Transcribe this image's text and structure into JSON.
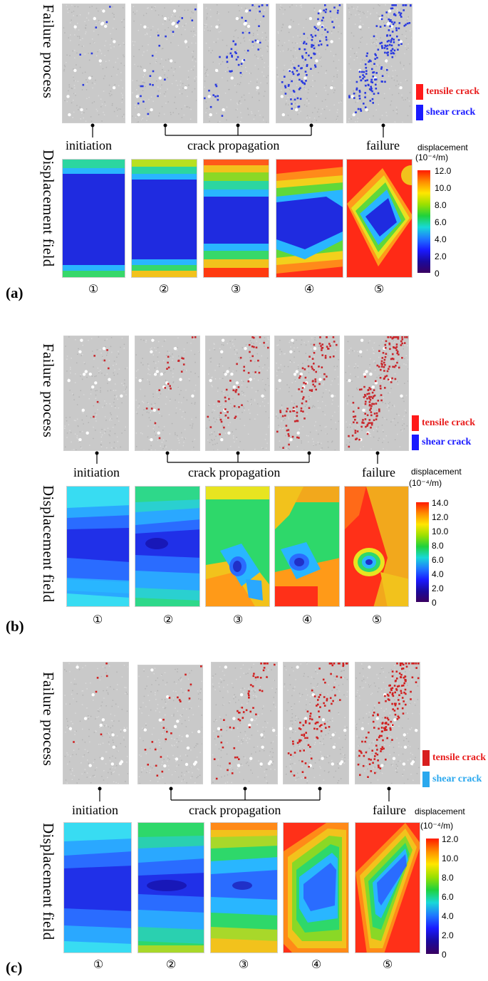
{
  "panels": [
    {
      "letter": "(a)",
      "row1_label": "Failure process",
      "row2_label": "Displacement field",
      "stages": {
        "initiation": "initiation",
        "propagation": "crack propagation",
        "failure": "failure"
      },
      "legend": [
        {
          "label": "tensile crack",
          "color": "#ff1a1a",
          "text_color": "#e81d1d"
        },
        {
          "label": "shear crack",
          "color": "#1a1aff",
          "text_color": "#1a1aff"
        }
      ],
      "displacement_title": "displacement",
      "displacement_unit": "(10⁻⁴/m)",
      "colorbar_ticks": [
        "12.0",
        "10.0",
        "8.0",
        "6.0",
        "4.0",
        "2.0",
        "0"
      ],
      "numbers": [
        "①",
        "②",
        "③",
        "④",
        "⑤"
      ],
      "crack_color": "#2a3adf"
    },
    {
      "letter": "(b)",
      "row1_label": "Failure process",
      "row2_label": "Displacement field",
      "stages": {
        "initiation": "initiation",
        "propagation": "crack propagation",
        "failure": "failure"
      },
      "legend": [
        {
          "label": "tensile crack",
          "color": "#ff1a1a",
          "text_color": "#e81d1d"
        },
        {
          "label": "shear crack",
          "color": "#1a1aff",
          "text_color": "#1a1aff"
        }
      ],
      "displacement_title": "displacement",
      "displacement_unit": "(10⁻⁴/m)",
      "colorbar_ticks": [
        "14.0",
        "12.0",
        "10.0",
        "8.0",
        "6.0",
        "4.0",
        "2.0",
        "0"
      ],
      "numbers": [
        "①",
        "②",
        "③",
        "④",
        "⑤"
      ],
      "crack_color": "#c8282d"
    },
    {
      "letter": "(c)",
      "row1_label": "Failure process",
      "row2_label": "Displacement field",
      "stages": {
        "initiation": "initiation",
        "propagation": "crack propagation",
        "failure": "failure"
      },
      "legend": [
        {
          "label": "tensile crack",
          "color": "#d81e1e",
          "text_color": "#e81d1d"
        },
        {
          "label": "shear crack",
          "color": "#2aa8ee",
          "text_color": "#2aa8ee"
        }
      ],
      "displacement_title": "displacement",
      "displacement_unit": "(10⁻⁴/m)",
      "colorbar_ticks": [
        "12.0",
        "10.0",
        "8.0",
        "6.0",
        "4.0",
        "2.0",
        "0"
      ],
      "numbers": [
        "①",
        "②",
        "③",
        "④",
        "⑤"
      ],
      "crack_color": "#d02020"
    }
  ]
}
